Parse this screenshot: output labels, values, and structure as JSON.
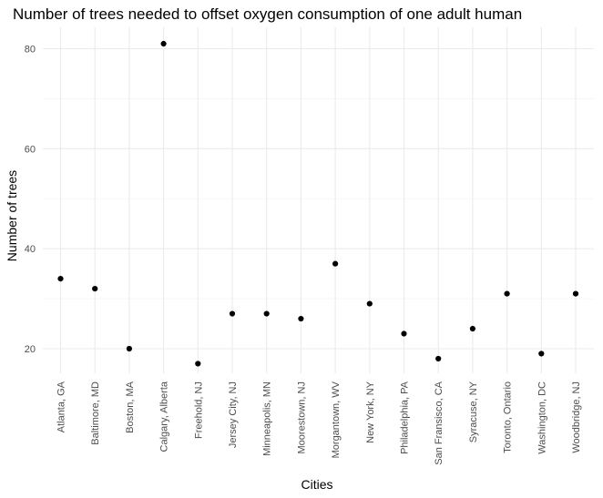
{
  "chart_data": {
    "type": "scatter",
    "title": "Number of trees needed to offset oxygen consumption of one adult human",
    "xlabel": "Cities",
    "ylabel": "Number of trees",
    "categories": [
      "Atlanta, GA",
      "Baltimore, MD",
      "Boston, MA",
      "Calgary, Alberta",
      "Freehold, NJ",
      "Jersey City, NJ",
      "Minneapolis, MN",
      "Moorestown, NJ",
      "Morgantown, WV",
      "New York, NY",
      "Philadelphia, PA",
      "San Fransisco, CA",
      "Syracuse, NY",
      "Toronto, Ontario",
      "Washington, DC",
      "Woodbridge, NJ"
    ],
    "values": [
      34,
      32,
      20,
      81,
      17,
      27,
      27,
      26,
      37,
      29,
      23,
      18,
      24,
      31,
      19,
      31
    ],
    "y_ticks": [
      20,
      40,
      60,
      80
    ],
    "ylim": [
      14,
      84
    ],
    "grid": true,
    "legend": "none",
    "point_color": "#000000"
  }
}
